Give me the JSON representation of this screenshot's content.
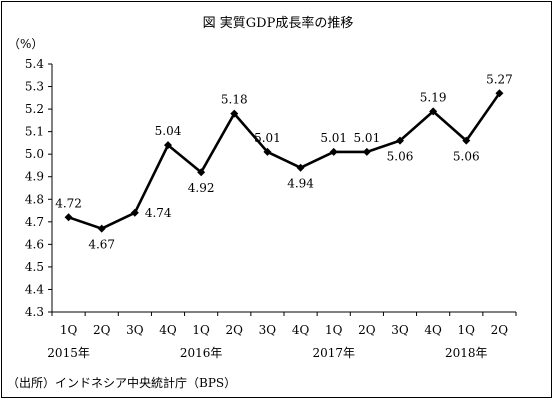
{
  "chart_data": {
    "type": "line",
    "title": "図 実質GDP成長率の推移",
    "ylabel": "（%）",
    "ylim": [
      4.3,
      5.4
    ],
    "yticks": [
      "5.4",
      "5.3",
      "5.2",
      "5.1",
      "5.0",
      "4.9",
      "4.8",
      "4.7",
      "4.6",
      "4.5",
      "4.4",
      "4.3"
    ],
    "categories": [
      "1Q",
      "2Q",
      "3Q",
      "4Q",
      "1Q",
      "2Q",
      "3Q",
      "4Q",
      "1Q",
      "2Q",
      "3Q",
      "4Q",
      "1Q",
      "2Q"
    ],
    "year_labels": [
      "2015年",
      "2016年",
      "2017年",
      "2018年"
    ],
    "series": [
      {
        "values": [
          4.72,
          4.67,
          4.74,
          5.04,
          4.92,
          5.18,
          5.01,
          4.94,
          5.01,
          5.01,
          5.06,
          5.19,
          5.06,
          5.27
        ],
        "labels": [
          "4.72",
          "4.67",
          "4.74",
          "5.04",
          "4.92",
          "5.18",
          "5.01",
          "4.94",
          "5.01",
          "5.01",
          "5.06",
          "5.19",
          "5.06",
          "5.27"
        ]
      }
    ],
    "grid": false,
    "legend": "none",
    "source": "（出所）インドネシア中央統計庁（BPS）"
  }
}
